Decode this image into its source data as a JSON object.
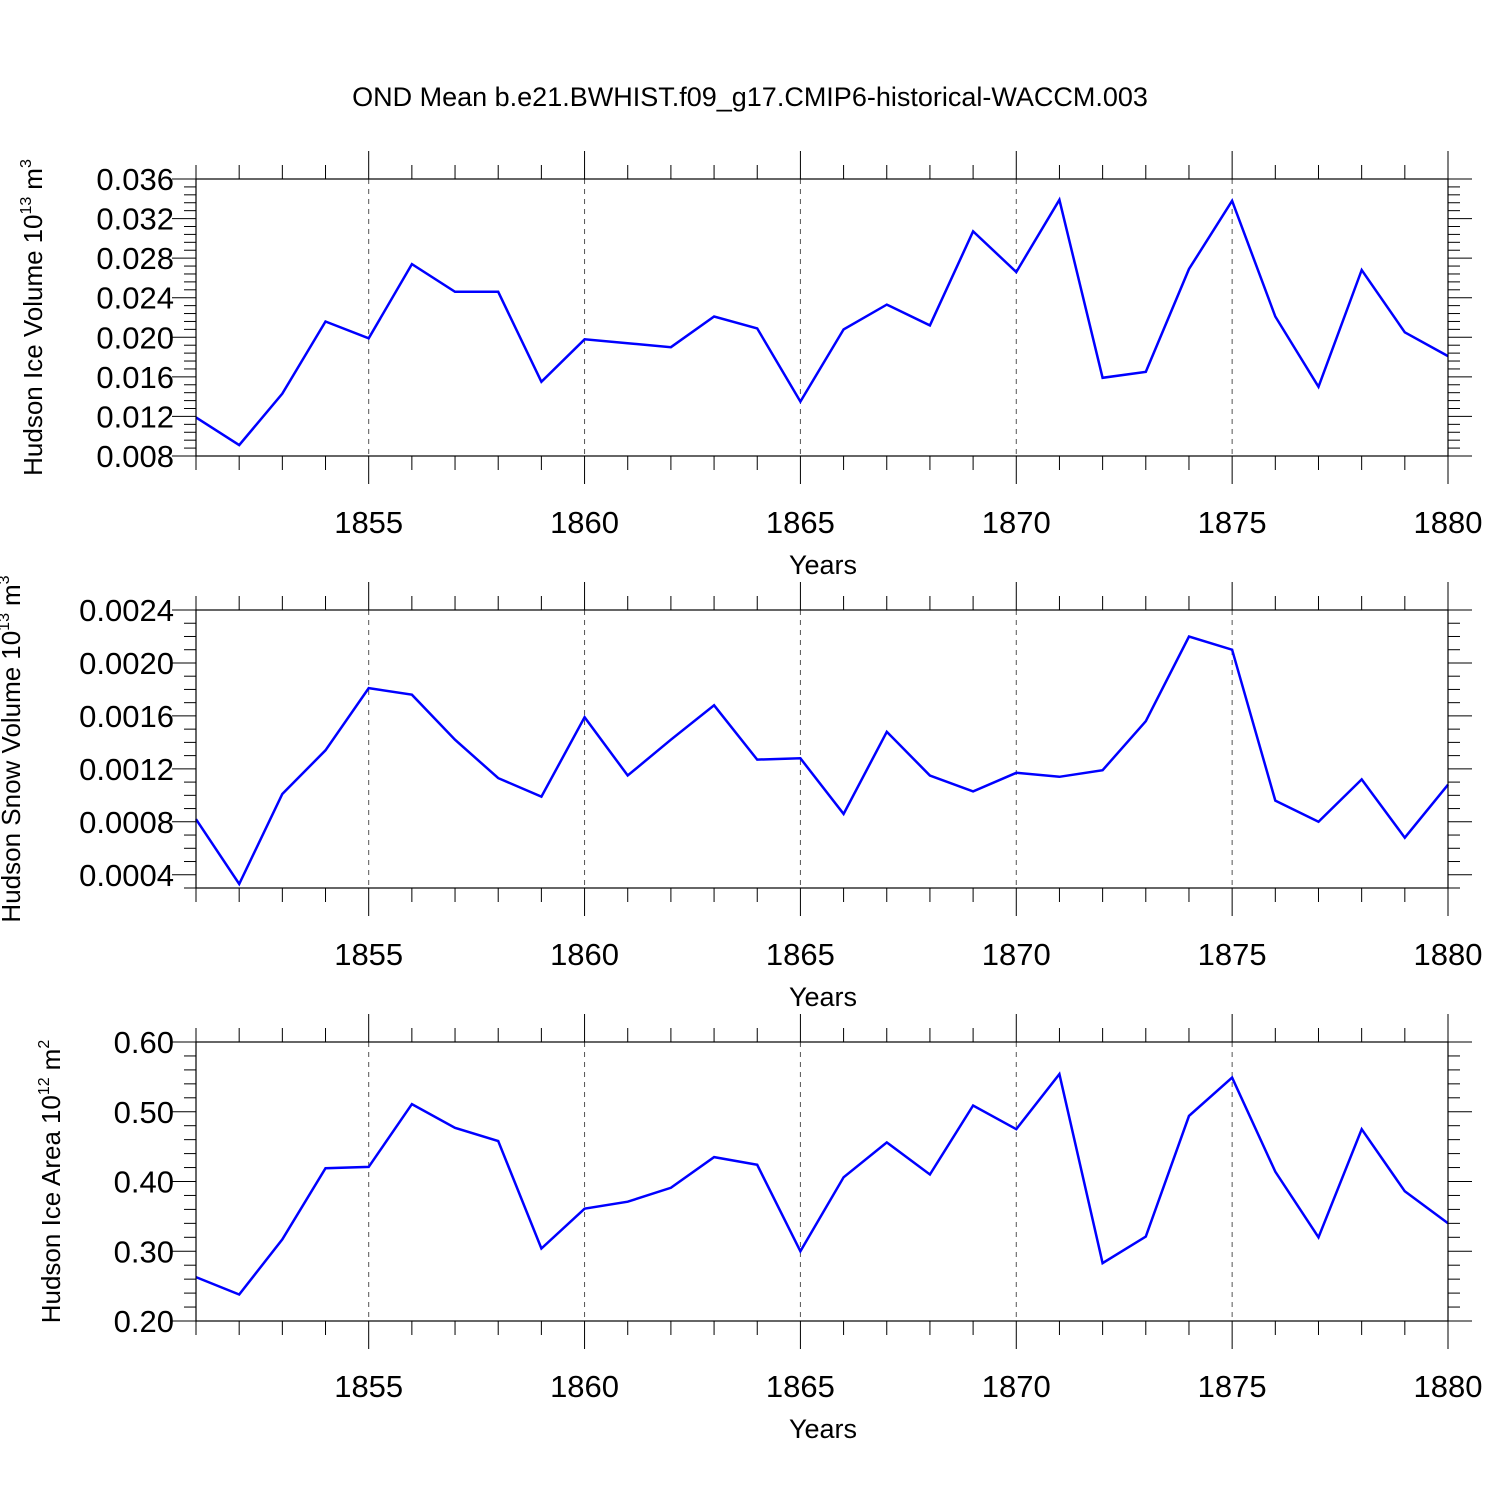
{
  "page": {
    "title": "OND Mean b.e21.BWHIST.f09_g17.CMIP6-historical-WACCM.003"
  },
  "chart_data": [
    {
      "type": "line",
      "ylabel": "Hudson Ice Volume",
      "ylabel_unit_base": "10",
      "ylabel_unit_exp": "13",
      "ylabel_unit_symbol": "m",
      "ylabel_unit_symbol_exp": "3",
      "xlabel": "Years",
      "xlim": [
        1851,
        1880
      ],
      "ylim": [
        0.008,
        0.036
      ],
      "x_ticks": [
        1855,
        1860,
        1865,
        1870,
        1875,
        1880
      ],
      "x_tick_labels": [
        "1855",
        "1860",
        "1865",
        "1870",
        "1875",
        "1880"
      ],
      "y_ticks": [
        0.008,
        0.012,
        0.016,
        0.02,
        0.024,
        0.028,
        0.032,
        0.036
      ],
      "y_tick_labels": [
        "0.008",
        "0.012",
        "0.016",
        "0.020",
        "0.024",
        "0.028",
        "0.032",
        "0.036"
      ],
      "y_minor_step": 0.0008,
      "grid": "dashed vertical lines at major x ticks",
      "line_color": "#0000ff",
      "x": [
        1851,
        1852,
        1853,
        1854,
        1855,
        1856,
        1857,
        1858,
        1859,
        1860,
        1861,
        1862,
        1863,
        1864,
        1865,
        1866,
        1867,
        1868,
        1869,
        1870,
        1871,
        1872,
        1873,
        1874,
        1875,
        1876,
        1877,
        1878,
        1879,
        1880
      ],
      "series": [
        {
          "values": [
            0.0119,
            0.0091,
            0.0143,
            0.0216,
            0.0199,
            0.0274,
            0.0246,
            0.0246,
            0.0155,
            0.0198,
            0.0194,
            0.019,
            0.0221,
            0.0209,
            0.0135,
            0.0208,
            0.0233,
            0.0212,
            0.0307,
            0.0266,
            0.0339,
            0.0159,
            0.0165,
            0.0269,
            0.0338,
            0.0221,
            0.015,
            0.0268,
            0.0205,
            0.0181
          ]
        }
      ]
    },
    {
      "type": "line",
      "ylabel": "Hudson Snow Volume",
      "ylabel_unit_base": "10",
      "ylabel_unit_exp": "13",
      "ylabel_unit_symbol": "m",
      "ylabel_unit_symbol_exp": "3",
      "xlabel": "Years",
      "xlim": [
        1851,
        1880
      ],
      "ylim": [
        0.0003,
        0.0024
      ],
      "x_ticks": [
        1855,
        1860,
        1865,
        1870,
        1875,
        1880
      ],
      "x_tick_labels": [
        "1855",
        "1860",
        "1865",
        "1870",
        "1875",
        "1880"
      ],
      "y_ticks": [
        0.0004,
        0.0008,
        0.0012,
        0.0016,
        0.002,
        0.0024
      ],
      "y_tick_labels": [
        "0.0004",
        "0.0008",
        "0.0012",
        "0.0016",
        "0.0020",
        "0.0024"
      ],
      "y_minor_step": 0.0001,
      "grid": "dashed vertical lines at major x ticks",
      "line_color": "#0000ff",
      "x": [
        1851,
        1852,
        1853,
        1854,
        1855,
        1856,
        1857,
        1858,
        1859,
        1860,
        1861,
        1862,
        1863,
        1864,
        1865,
        1866,
        1867,
        1868,
        1869,
        1870,
        1871,
        1872,
        1873,
        1874,
        1875,
        1876,
        1877,
        1878,
        1879,
        1880
      ],
      "series": [
        {
          "values": [
            0.00082,
            0.00033,
            0.00101,
            0.00134,
            0.00181,
            0.00176,
            0.00142,
            0.00113,
            0.00099,
            0.00159,
            0.00115,
            0.00142,
            0.00168,
            0.00127,
            0.00128,
            0.00086,
            0.00148,
            0.00115,
            0.00103,
            0.00117,
            0.00114,
            0.00119,
            0.00156,
            0.0022,
            0.0021,
            0.00096,
            0.0008,
            0.00112,
            0.00068,
            0.00108
          ]
        }
      ]
    },
    {
      "type": "line",
      "ylabel": "Hudson Ice Area",
      "ylabel_unit_base": "10",
      "ylabel_unit_exp": "12",
      "ylabel_unit_symbol": "m",
      "ylabel_unit_symbol_exp": "2",
      "xlabel": "Years",
      "xlim": [
        1851,
        1880
      ],
      "ylim": [
        0.2,
        0.6
      ],
      "x_ticks": [
        1855,
        1860,
        1865,
        1870,
        1875,
        1880
      ],
      "x_tick_labels": [
        "1855",
        "1860",
        "1865",
        "1870",
        "1875",
        "1880"
      ],
      "y_ticks": [
        0.2,
        0.3,
        0.4,
        0.5,
        0.6
      ],
      "y_tick_labels": [
        "0.20",
        "0.30",
        "0.40",
        "0.50",
        "0.60"
      ],
      "y_minor_step": 0.02,
      "grid": "dashed vertical lines at major x ticks",
      "line_color": "#0000ff",
      "x": [
        1851,
        1852,
        1853,
        1854,
        1855,
        1856,
        1857,
        1858,
        1859,
        1860,
        1861,
        1862,
        1863,
        1864,
        1865,
        1866,
        1867,
        1868,
        1869,
        1870,
        1871,
        1872,
        1873,
        1874,
        1875,
        1876,
        1877,
        1878,
        1879,
        1880
      ],
      "series": [
        {
          "values": [
            0.263,
            0.238,
            0.317,
            0.419,
            0.421,
            0.511,
            0.477,
            0.458,
            0.304,
            0.361,
            0.371,
            0.391,
            0.435,
            0.424,
            0.3,
            0.406,
            0.456,
            0.41,
            0.509,
            0.475,
            0.554,
            0.283,
            0.321,
            0.494,
            0.549,
            0.414,
            0.32,
            0.475,
            0.386,
            0.34
          ]
        }
      ]
    }
  ]
}
